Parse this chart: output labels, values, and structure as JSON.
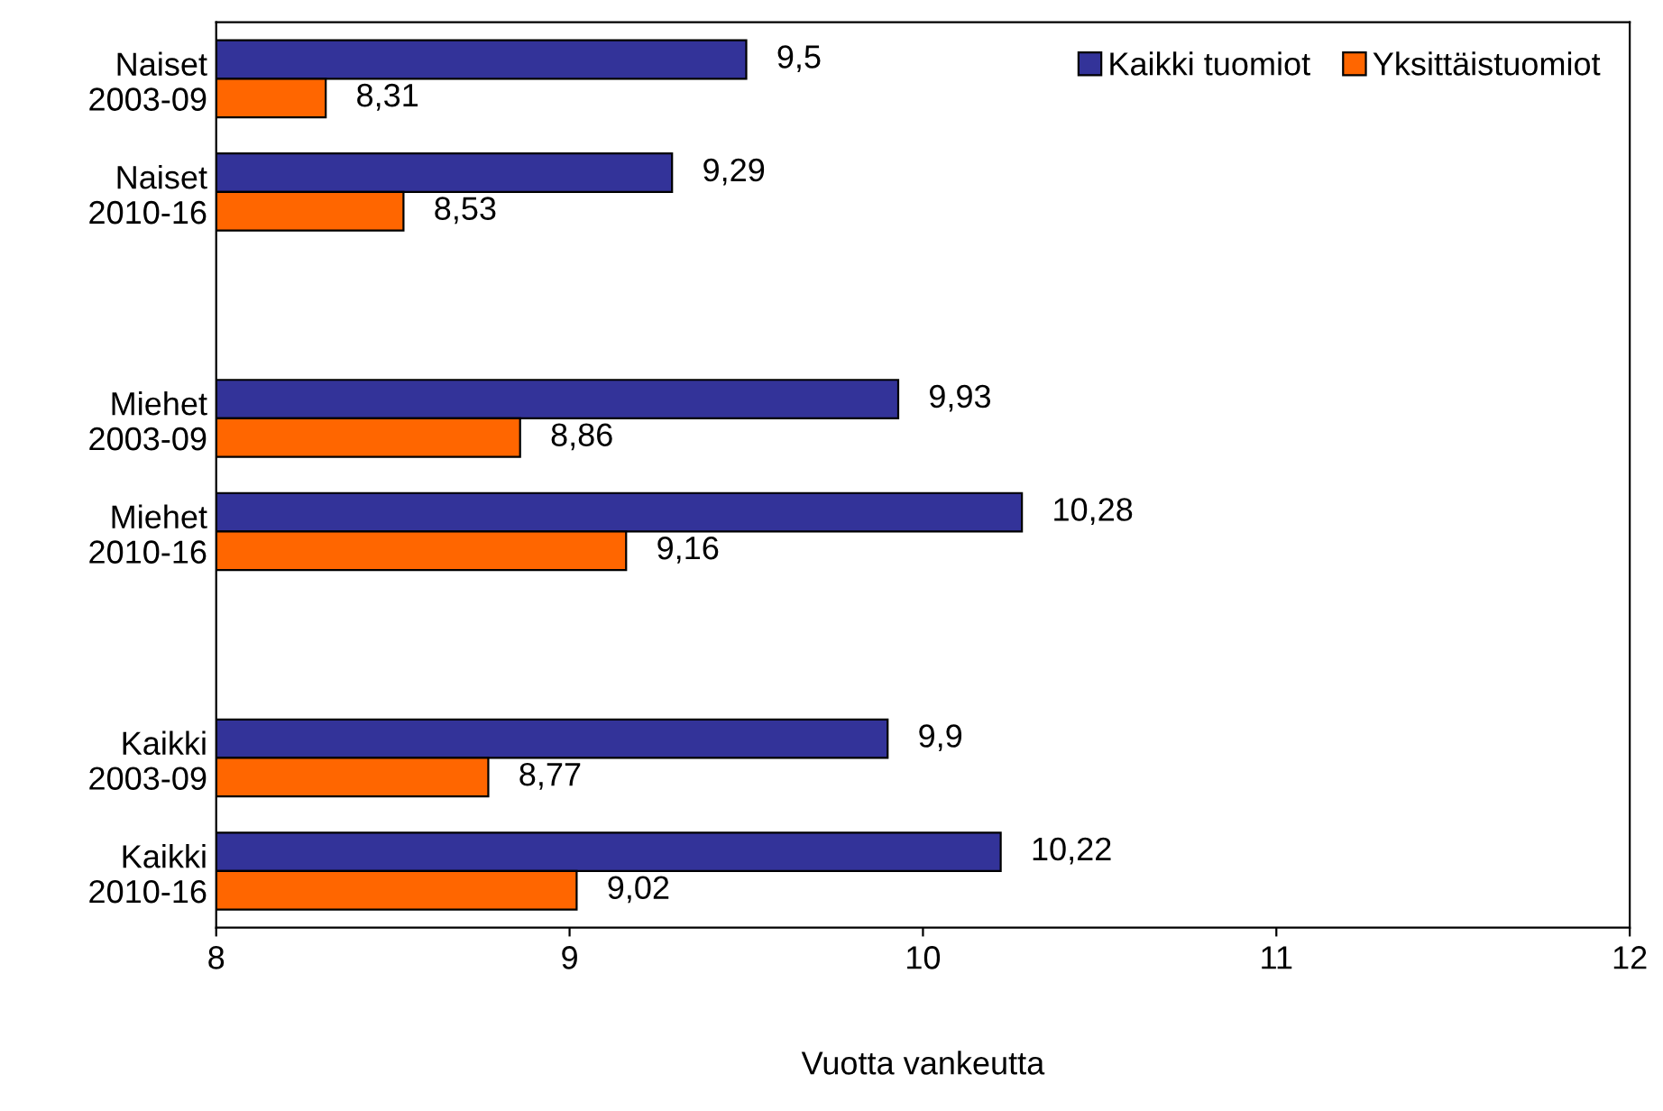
{
  "chart_data": {
    "type": "bar",
    "orientation": "horizontal",
    "xlabel": "Vuotta vankeutta",
    "categories": [
      "Naiset\n2003-09",
      "Naiset\n2010-16",
      null,
      "Miehet\n2003-09",
      "Miehet\n2010-16",
      null,
      "Kaikki\n2003-09",
      "Kaikki\n2010-16"
    ],
    "series": [
      {
        "name": "Kaikki tuomiot",
        "color": "#333399",
        "values": [
          9.5,
          9.29,
          null,
          9.93,
          10.28,
          null,
          9.9,
          10.22
        ],
        "value_labels": [
          "9,5",
          "9,29",
          null,
          "9,93",
          "10,28",
          null,
          "9,9",
          "10,22"
        ]
      },
      {
        "name": "Yksittäistuomiot",
        "color": "#ff6600",
        "values": [
          8.31,
          8.53,
          null,
          8.86,
          9.16,
          null,
          8.77,
          9.02
        ],
        "value_labels": [
          "8,31",
          "8,53",
          null,
          "8,86",
          "9,16",
          null,
          "8,77",
          "9,02"
        ]
      }
    ],
    "xlim": [
      8,
      12
    ],
    "xticks": [
      8,
      9,
      10,
      11,
      12
    ],
    "grid": false,
    "legend": "top right"
  }
}
